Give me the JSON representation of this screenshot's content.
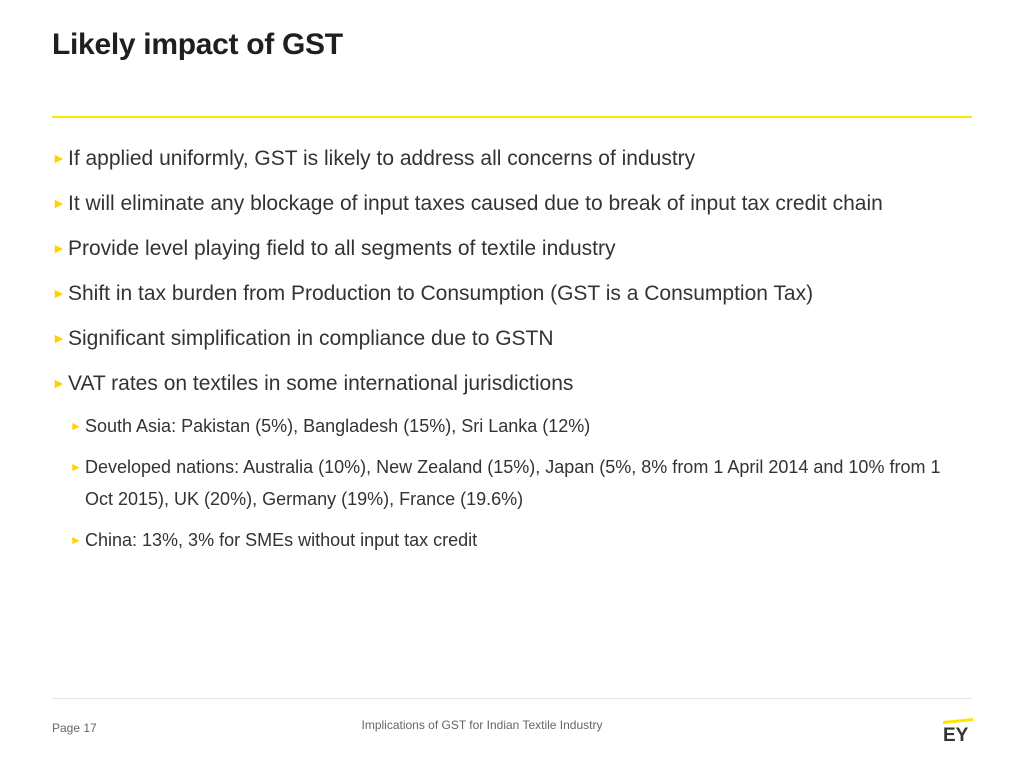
{
  "header": {
    "title": "Likely impact of GST"
  },
  "bullets": [
    {
      "text": "If applied uniformly, GST is likely to address all concerns of industry"
    },
    {
      "text": "It will eliminate any blockage of input taxes caused due to break of input tax credit chain"
    },
    {
      "text": "Provide level playing field to all segments of textile industry"
    },
    {
      "text": "Shift in tax burden from Production to Consumption (GST is a Consumption Tax)"
    },
    {
      "text": "Significant simplification in compliance due to GSTN"
    },
    {
      "text": "VAT rates on textiles in some international jurisdictions",
      "children": [
        {
          "text": "South Asia: Pakistan (5%), Bangladesh (15%), Sri Lanka (12%)"
        },
        {
          "text": "Developed nations: Australia (10%), New Zealand (15%), Japan (5%, 8% from 1 April 2014 and 10% from 1 Oct 2015), UK (20%), Germany (19%), France (19.6%)"
        },
        {
          "text": "China: 13%, 3% for SMEs without input tax credit"
        }
      ]
    }
  ],
  "footer": {
    "page": "Page 17",
    "center_text": "Implications of GST for Indian Textile Industry",
    "logo": "EY"
  },
  "colors": {
    "accent": "#ffe600",
    "arrow": "#ffd100",
    "text": "#333333",
    "title": "#1f1f1f"
  },
  "icons": {
    "bullet": "right-triangle-arrow-icon"
  }
}
